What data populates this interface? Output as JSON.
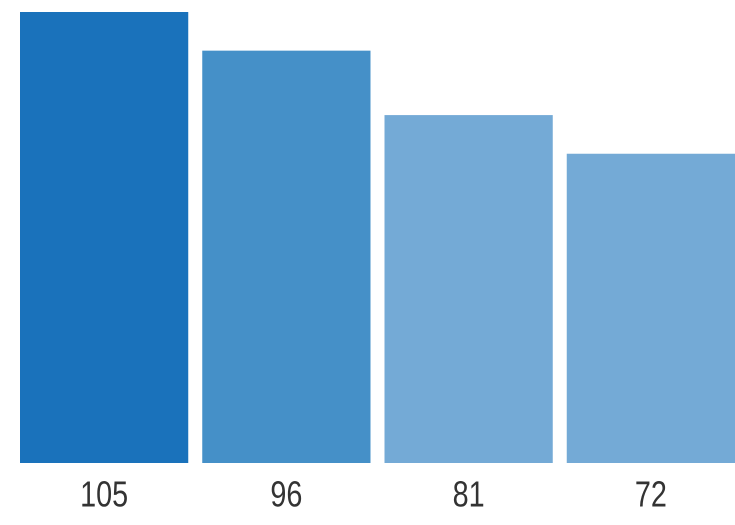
{
  "chart_data": {
    "type": "bar",
    "values": [
      105,
      96,
      81,
      72
    ],
    "colors": [
      "#1a72bb",
      "#4590c8",
      "#74aad6",
      "#74aad6"
    ]
  }
}
